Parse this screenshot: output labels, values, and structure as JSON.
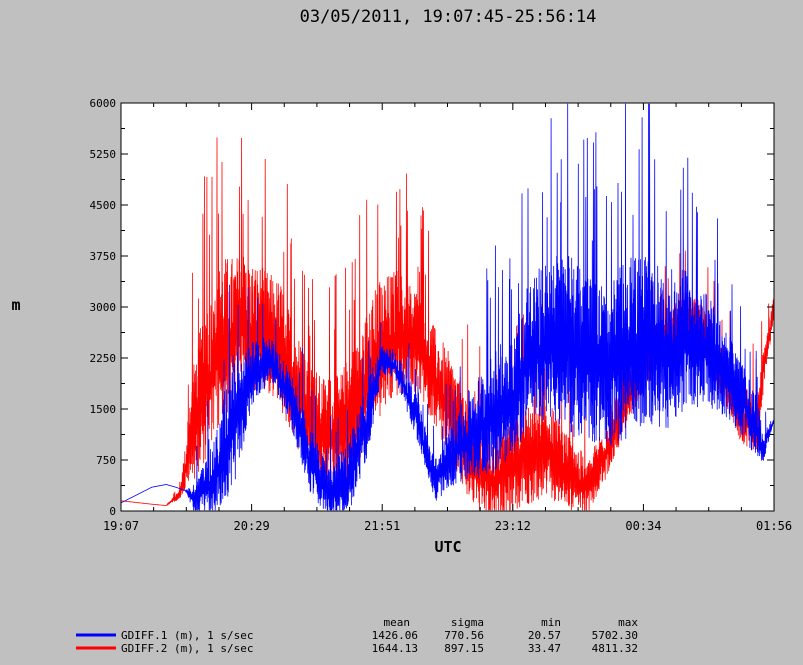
{
  "chart_data": {
    "type": "line",
    "title": "03/05/2011, 19:07:45-25:56:14",
    "xlabel": "UTC",
    "ylabel": "m",
    "ylim": [
      0,
      6000
    ],
    "xlim_hours": [
      19.129,
      25.937
    ],
    "y_ticks": [
      0,
      750,
      1500,
      2250,
      3000,
      3750,
      4500,
      5250,
      6000
    ],
    "x_ticks": [
      {
        "label": "19:07",
        "hour": 19.129
      },
      {
        "label": "20:29",
        "hour": 20.4907
      },
      {
        "label": "21:51",
        "hour": 21.8523
      },
      {
        "label": "23:12",
        "hour": 23.214
      },
      {
        "label": "00:34",
        "hour": 24.5756
      },
      {
        "label": "01:56",
        "hour": 25.9373
      }
    ],
    "grid": false,
    "legend_position": "bottom-left",
    "stats_headers": {
      "mean": "mean",
      "sigma": "sigma",
      "min": "min",
      "max": "max"
    },
    "series": [
      {
        "name": "GDIFF.1 (m), 1 s/sec",
        "color": "#0000ff",
        "mean": "1426.06",
        "sigma": "770.56",
        "min": "20.57",
        "max": "5702.30",
        "x": [
          19.13,
          19.45,
          19.6,
          19.7,
          19.8,
          19.9,
          20.1,
          20.3,
          20.5,
          20.7,
          20.9,
          21.1,
          21.3,
          21.5,
          21.7,
          21.85,
          22.0,
          22.2,
          22.4,
          22.6,
          22.8,
          23.0,
          23.2,
          23.4,
          23.6,
          23.8,
          24.0,
          24.2,
          24.4,
          24.6,
          24.8,
          25.0,
          25.2,
          25.4,
          25.6,
          25.75,
          25.82,
          25.94
        ],
        "y": [
          120,
          350,
          390,
          350,
          300,
          150,
          400,
          1200,
          2000,
          2200,
          1600,
          700,
          200,
          400,
          1300,
          2200,
          2100,
          1400,
          400,
          800,
          1100,
          1300,
          1600,
          2200,
          2400,
          2300,
          2100,
          2000,
          2200,
          2400,
          2200,
          2400,
          2300,
          2000,
          1600,
          1200,
          900,
          1350
        ],
        "spike_amp": [
          0,
          0,
          0,
          0,
          0,
          300,
          700,
          1300,
          600,
          400,
          500,
          600,
          500,
          700,
          700,
          300,
          300,
          400,
          400,
          600,
          900,
          1100,
          1200,
          1400,
          1500,
          1700,
          1600,
          1500,
          1700,
          1600,
          1500,
          1300,
          1100,
          900,
          700,
          600,
          300,
          0
        ]
      },
      {
        "name": "GDIFF.2 (m), 1 s/sec",
        "color": "#ff0000",
        "mean": "1644.13",
        "sigma": "897.15",
        "min": "33.47",
        "max": "4811.32",
        "x": [
          19.13,
          19.45,
          19.6,
          19.75,
          19.9,
          20.0,
          20.2,
          20.4,
          20.6,
          20.8,
          21.0,
          21.2,
          21.4,
          21.6,
          21.8,
          22.0,
          22.2,
          22.4,
          22.6,
          22.8,
          23.0,
          23.2,
          23.4,
          23.6,
          23.8,
          24.0,
          24.2,
          24.4,
          24.6,
          24.8,
          25.0,
          25.2,
          25.4,
          25.6,
          25.75,
          25.85,
          25.94
        ],
        "y": [
          150,
          100,
          80,
          250,
          1300,
          1700,
          2400,
          2600,
          2600,
          2300,
          1500,
          1100,
          1000,
          1500,
          2200,
          2500,
          2400,
          1900,
          1300,
          700,
          400,
          600,
          800,
          800,
          500,
          300,
          900,
          1600,
          2200,
          2400,
          2800,
          2600,
          2000,
          1400,
          1200,
          2300,
          3000
        ],
        "spike_amp": [
          0,
          0,
          0,
          100,
          1200,
          1400,
          1500,
          1300,
          1100,
          1200,
          1100,
          1000,
          1100,
          1200,
          1300,
          1200,
          1000,
          900,
          1000,
          900,
          800,
          900,
          1000,
          900,
          700,
          500,
          600,
          500,
          500,
          500,
          500,
          500,
          500,
          600,
          500,
          400,
          200
        ]
      }
    ]
  }
}
